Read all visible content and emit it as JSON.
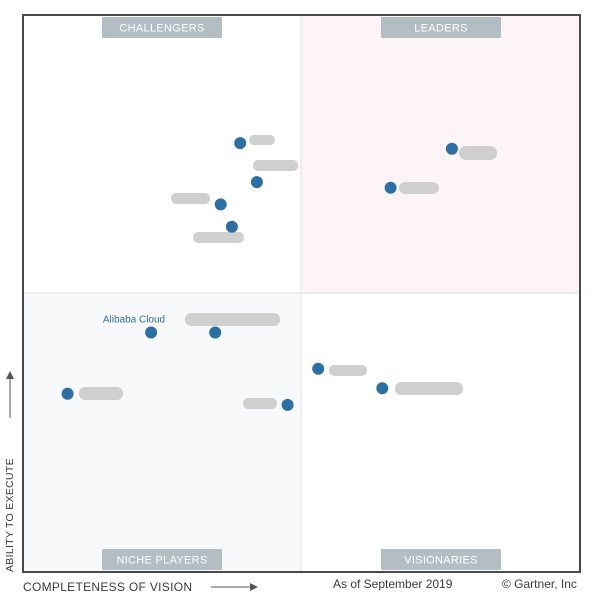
{
  "chart_data": {
    "type": "scatter",
    "title": "",
    "xlabel": "COMPLETENESS OF VISION",
    "ylabel": "ABILITY TO EXECUTE",
    "xlim": [
      0,
      100
    ],
    "ylim": [
      0,
      100
    ],
    "grid": false,
    "quadrants": {
      "top_left": "CHALLENGERS",
      "top_right": "LEADERS",
      "bottom_left": "NICHE PLAYERS",
      "bottom_right": "VISIONARIES"
    },
    "points": [
      {
        "label": "",
        "x": 77,
        "y": 76
      },
      {
        "label": "",
        "x": 66,
        "y": 69
      },
      {
        "label": "",
        "x": 39,
        "y": 77
      },
      {
        "label": "",
        "x": 42,
        "y": 70
      },
      {
        "label": "",
        "x": 35.5,
        "y": 66
      },
      {
        "label": "",
        "x": 37.5,
        "y": 62
      },
      {
        "label": "Alibaba Cloud",
        "x": 23,
        "y": 43
      },
      {
        "label": "",
        "x": 34.5,
        "y": 43
      },
      {
        "label": "",
        "x": 8,
        "y": 32
      },
      {
        "label": "",
        "x": 47.5,
        "y": 30
      },
      {
        "label": "",
        "x": 53,
        "y": 36.5
      },
      {
        "label": "",
        "x": 64.5,
        "y": 33
      }
    ],
    "colors": {
      "point": "#2e6ea0",
      "quadrant_label_bg": "#b3bdc4",
      "leaders_bg": "#fdf3f7",
      "niche_bg": "#f7f8f9"
    }
  },
  "footer": {
    "date": "As of September 2019",
    "credit": "© Gartner, Inc"
  }
}
